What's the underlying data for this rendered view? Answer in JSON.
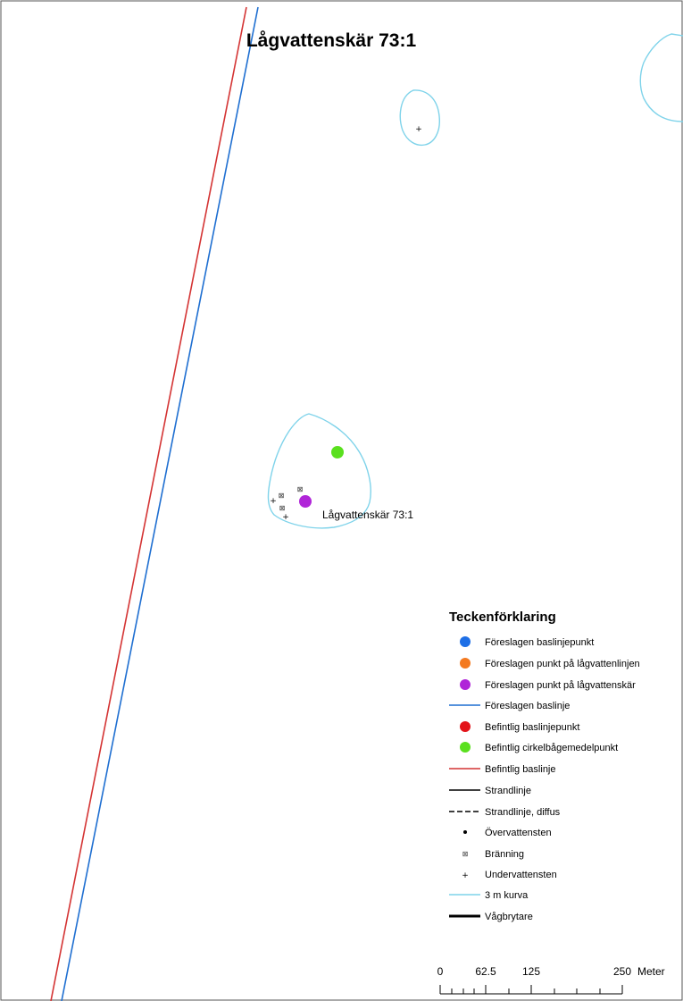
{
  "map": {
    "title": "Lågvattenskär 73:1",
    "feature_label": "Lågvattenskär 73:1"
  },
  "colors": {
    "proposed_baseline": "#1f6fd1",
    "existing_baseline": "#d43434",
    "contour_3m": "#7fd3ea",
    "proposed_baseline_point": "#1e6fe6",
    "proposed_lowwater_line_point": "#f47a20",
    "proposed_lowwater_rock_point": "#b025d8",
    "existing_baseline_point": "#e3141a",
    "existing_arc_center": "#5ae01e"
  },
  "legend": {
    "title": "Teckenförklaring",
    "items": [
      {
        "label": "Föreslagen baslinjepunkt",
        "icon": "blue-dot-icon"
      },
      {
        "label": "Föreslagen punkt på lågvattenlinjen",
        "icon": "orange-dot-icon"
      },
      {
        "label": "Föreslagen punkt på lågvattenskär",
        "icon": "purple-dot-icon"
      },
      {
        "label": "Föreslagen baslinje",
        "icon": "blue-line-icon"
      },
      {
        "label": "Befintlig baslinjepunkt",
        "icon": "red-dot-icon"
      },
      {
        "label": "Befintlig cirkelbågemedelpunkt",
        "icon": "green-dot-icon"
      },
      {
        "label": "Befintlig baslinje",
        "icon": "red-line-icon"
      },
      {
        "label": "Strandlinje",
        "icon": "black-line-icon"
      },
      {
        "label": "Strandlinje, diffus",
        "icon": "dashed-line-icon"
      },
      {
        "label": "Övervattensten",
        "icon": "small-dot-icon"
      },
      {
        "label": "Bränning",
        "icon": "asterisk-icon"
      },
      {
        "label": "Undervattensten",
        "icon": "plus-icon"
      },
      {
        "label": "3 m kurva",
        "icon": "cyan-line-icon"
      },
      {
        "label": "Vågbrytare",
        "icon": "thick-line-icon"
      }
    ]
  },
  "scalebar": {
    "ticks": [
      "0",
      "62.5",
      "125",
      "250"
    ],
    "unit": "Meter"
  }
}
